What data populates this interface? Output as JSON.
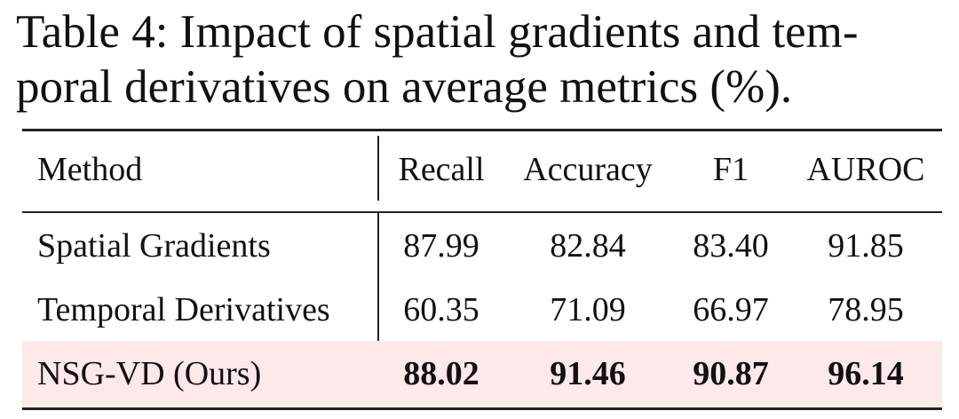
{
  "caption": "Table 4: Impact of spatial gradients and temporal derivatives on average metrics (%).",
  "caption_lines": [
    "Table 4: Impact of spatial gradients and tem-",
    "poral derivatives on average metrics (%)."
  ],
  "table": {
    "header": [
      "Method",
      "Recall",
      "Accuracy",
      "F1",
      "AUROC"
    ],
    "rows": [
      [
        "Spatial Gradients",
        "87.99",
        "82.84",
        "83.40",
        "91.85"
      ],
      [
        "Temporal Derivatives",
        "60.35",
        "71.09",
        "66.97",
        "78.95"
      ],
      [
        "NSG-VD (Ours)",
        "88.02",
        "91.46",
        "90.87",
        "96.14"
      ]
    ],
    "highlight_row": 2
  }
}
